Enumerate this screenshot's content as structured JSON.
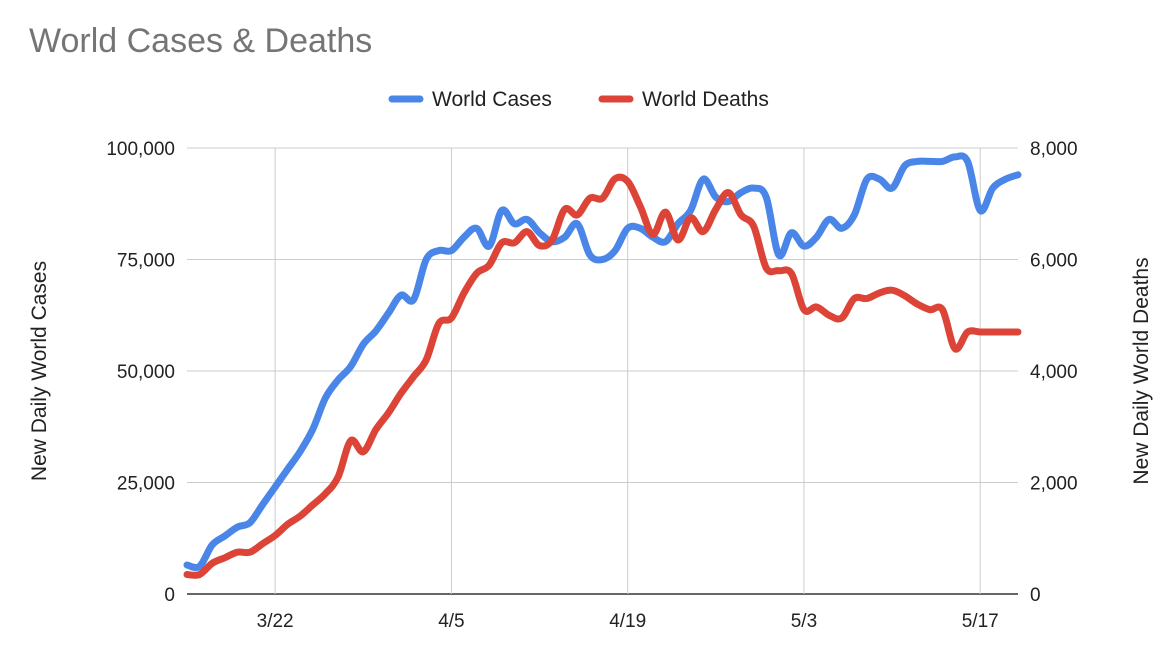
{
  "chart_data": {
    "type": "line",
    "title": "World Cases & Deaths",
    "legend_position": "top",
    "grid": true,
    "x_start": "3/15",
    "x_end": "5/20",
    "x_ticks": [
      "3/22",
      "4/5",
      "4/19",
      "5/3",
      "5/17"
    ],
    "y_left": {
      "label": "New Daily World Cases",
      "range": [
        0,
        100000
      ],
      "ticks": [
        "0",
        "25,000",
        "50,000",
        "75,000",
        "100,000"
      ]
    },
    "y_right": {
      "label": "New Daily World Deaths",
      "range": [
        0,
        8000
      ],
      "ticks": [
        "0",
        "2,000",
        "4,000",
        "6,000",
        "8,000"
      ]
    },
    "series": [
      {
        "name": "World Cases",
        "axis": "left",
        "color": "#4a86e8",
        "x": [
          "3/15",
          "3/16",
          "3/17",
          "3/18",
          "3/19",
          "3/20",
          "3/21",
          "3/22",
          "3/23",
          "3/24",
          "3/25",
          "3/26",
          "3/27",
          "3/28",
          "3/29",
          "3/30",
          "3/31",
          "4/1",
          "4/2",
          "4/3",
          "4/4",
          "4/5",
          "4/6",
          "4/7",
          "4/8",
          "4/9",
          "4/10",
          "4/11",
          "4/12",
          "4/13",
          "4/14",
          "4/15",
          "4/16",
          "4/17",
          "4/18",
          "4/19",
          "4/20",
          "4/21",
          "4/22",
          "4/23",
          "4/24",
          "4/25",
          "4/26",
          "4/27",
          "4/28",
          "4/29",
          "4/30",
          "5/1",
          "5/2",
          "5/3",
          "5/4",
          "5/5",
          "5/6",
          "5/7",
          "5/8",
          "5/9",
          "5/10",
          "5/11",
          "5/12",
          "5/13",
          "5/14",
          "5/15",
          "5/16",
          "5/17",
          "5/18",
          "5/19",
          "5/20"
        ],
        "values": [
          6500,
          6200,
          11000,
          13000,
          15000,
          16000,
          20000,
          24000,
          28000,
          32000,
          37000,
          44000,
          48000,
          51000,
          56000,
          59000,
          63000,
          67000,
          66000,
          75000,
          77000,
          77000,
          80000,
          82000,
          78000,
          86000,
          83000,
          84000,
          81000,
          79000,
          80000,
          83000,
          76000,
          75000,
          77000,
          82000,
          82000,
          80000,
          79000,
          83000,
          86000,
          93000,
          89000,
          88000,
          90000,
          91000,
          89000,
          76000,
          81000,
          78000,
          80000,
          84000,
          82000,
          85000,
          93000,
          93000,
          91000,
          96000,
          97000,
          97000,
          97000,
          98000,
          97000,
          86000,
          91000,
          93000,
          94000
        ]
      },
      {
        "name": "World Deaths",
        "axis": "right",
        "color": "#db4437",
        "x": [
          "3/15",
          "3/16",
          "3/17",
          "3/18",
          "3/19",
          "3/20",
          "3/21",
          "3/22",
          "3/23",
          "3/24",
          "3/25",
          "3/26",
          "3/27",
          "3/28",
          "3/29",
          "3/30",
          "3/31",
          "4/1",
          "4/2",
          "4/3",
          "4/4",
          "4/5",
          "4/6",
          "4/7",
          "4/8",
          "4/9",
          "4/10",
          "4/11",
          "4/12",
          "4/13",
          "4/14",
          "4/15",
          "4/16",
          "4/17",
          "4/18",
          "4/19",
          "4/20",
          "4/21",
          "4/22",
          "4/23",
          "4/24",
          "4/25",
          "4/26",
          "4/27",
          "4/28",
          "4/29",
          "4/30",
          "5/1",
          "5/2",
          "5/3",
          "5/4",
          "5/5",
          "5/6",
          "5/7",
          "5/8",
          "5/9",
          "5/10",
          "5/11",
          "5/12",
          "5/13",
          "5/14",
          "5/15",
          "5/16",
          "5/17",
          "5/18",
          "5/19",
          "5/20"
        ],
        "values": [
          350,
          350,
          550,
          650,
          750,
          750,
          900,
          1050,
          1250,
          1400,
          1600,
          1800,
          2100,
          2750,
          2550,
          2950,
          3250,
          3600,
          3900,
          4200,
          4850,
          4950,
          5400,
          5750,
          5900,
          6300,
          6300,
          6500,
          6250,
          6350,
          6900,
          6800,
          7100,
          7100,
          7450,
          7400,
          6950,
          6450,
          6850,
          6350,
          6750,
          6500,
          6900,
          7200,
          6800,
          6600,
          5850,
          5800,
          5750,
          5100,
          5150,
          5000,
          4950,
          5300,
          5300,
          5400,
          5450,
          5350,
          5200,
          5100,
          5100,
          4400,
          4700,
          4700,
          4700,
          4700,
          4700
        ]
      }
    ]
  }
}
